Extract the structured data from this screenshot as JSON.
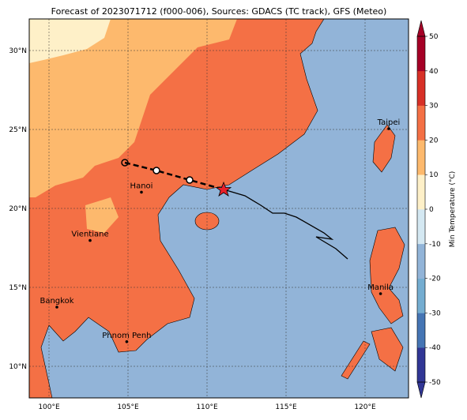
{
  "map": {
    "title": "Forecast of 2023071712 (f000-006), Sources: GDACS (TC track), GFS (Meteo)",
    "xlim": [
      98.75,
      122.75
    ],
    "ylim": [
      8,
      32
    ],
    "xticks": [
      {
        "value": 100,
        "label": "100°E"
      },
      {
        "value": 105,
        "label": "105°E"
      },
      {
        "value": 110,
        "label": "110°E"
      },
      {
        "value": 115,
        "label": "115°E"
      },
      {
        "value": 120,
        "label": "120°E"
      }
    ],
    "yticks": [
      {
        "value": 10,
        "label": "10°N"
      },
      {
        "value": 15,
        "label": "15°N"
      },
      {
        "value": 20,
        "label": "20°N"
      },
      {
        "value": 25,
        "label": "25°N"
      },
      {
        "value": 30,
        "label": "30°N"
      }
    ],
    "grid": true,
    "cities": [
      "Taipei",
      "Hanoi",
      "Vientiane",
      "Manila",
      "Bangkok",
      "Phnom Penh"
    ]
  },
  "colorbar": {
    "label": "Min Temperature (°C)",
    "lim": [
      -50,
      50
    ],
    "ticks": [
      -50,
      -40,
      -30,
      -20,
      -10,
      0,
      10,
      20,
      30,
      40,
      50
    ],
    "colors": [
      "#313695",
      "#4575b4",
      "#74add1",
      "#92b4d8",
      "#d4e8f2",
      "#fef0c8",
      "#fdb96d",
      "#f47045",
      "#d73027",
      "#a50026"
    ]
  }
}
